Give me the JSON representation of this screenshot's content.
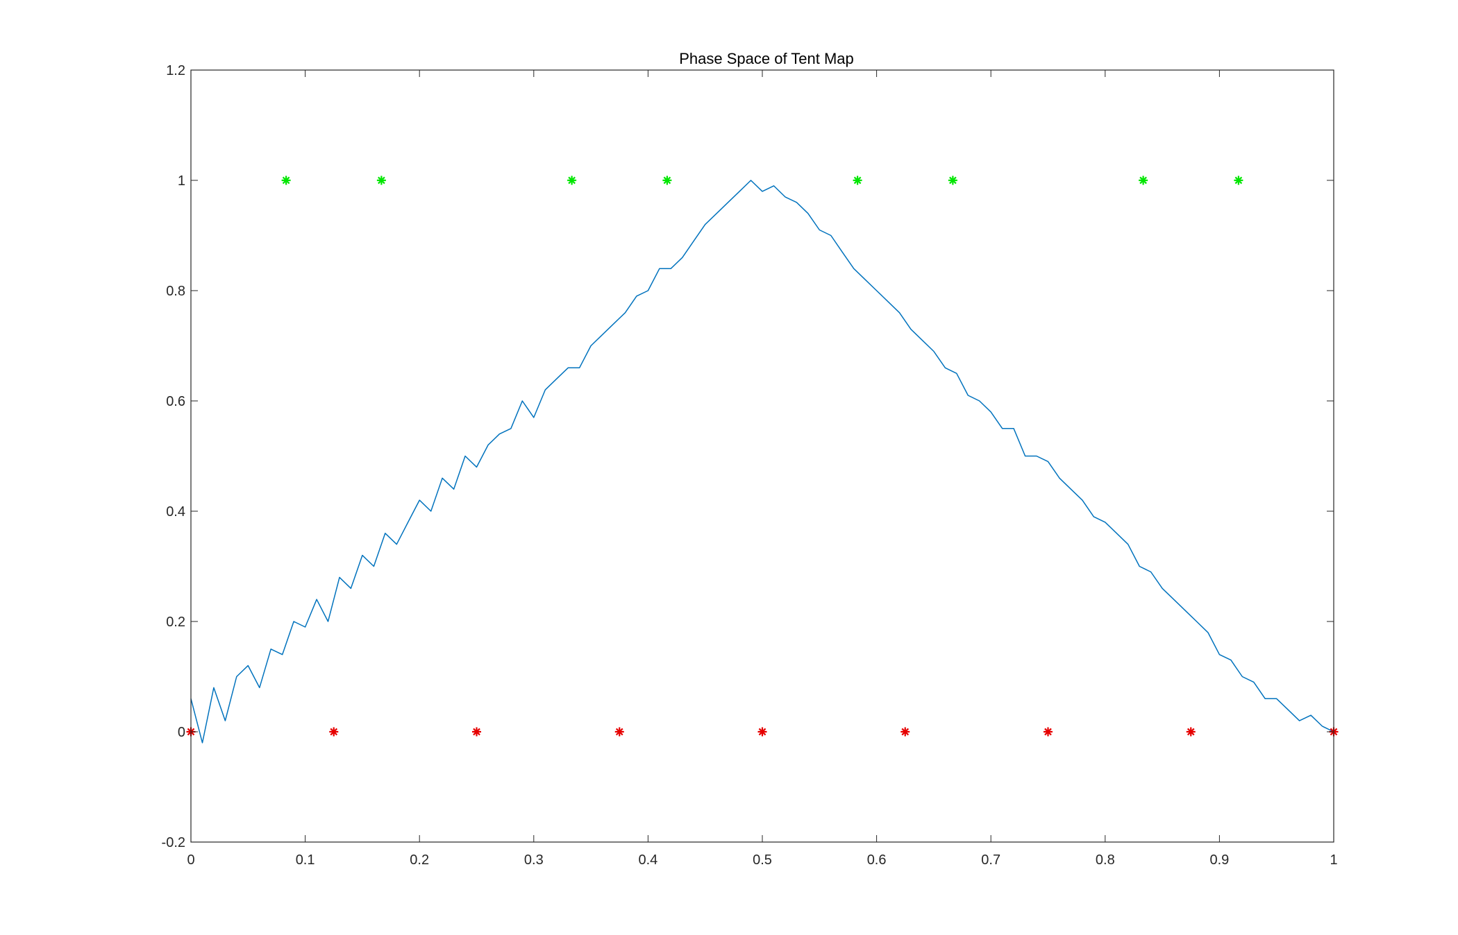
{
  "colors": {
    "line": "#0072BD",
    "green_marker": "#00E600",
    "red_marker": "#E60000",
    "axes": "#262626",
    "background": "#FFFFFF"
  },
  "chart_data": {
    "type": "line",
    "title": "Phase Space of Tent Map",
    "xlabel": "",
    "ylabel": "",
    "xlim": [
      0,
      1
    ],
    "ylim": [
      -0.2,
      1.2
    ],
    "xticks": [
      0,
      0.1,
      0.2,
      0.3,
      0.4,
      0.5,
      0.6,
      0.7,
      0.8,
      0.9,
      1
    ],
    "xtick_labels": [
      "0",
      "0.1",
      "0.2",
      "0.3",
      "0.4",
      "0.5",
      "0.6",
      "0.7",
      "0.8",
      "0.9",
      "1"
    ],
    "yticks": [
      -0.2,
      0,
      0.2,
      0.4,
      0.6,
      0.8,
      1,
      1.2
    ],
    "ytick_labels": [
      "-0.2",
      "0",
      "0.2",
      "0.4",
      "0.6",
      "0.8",
      "1",
      "1.2"
    ],
    "grid": false,
    "box": true,
    "series": [
      {
        "kind": "line",
        "color": "#0072BD",
        "x": [
          0,
          0.01,
          0.02,
          0.03,
          0.04,
          0.05,
          0.06,
          0.07,
          0.08,
          0.09,
          0.1,
          0.11,
          0.12,
          0.13,
          0.14,
          0.15,
          0.16,
          0.17,
          0.18,
          0.19,
          0.2,
          0.21,
          0.22,
          0.23,
          0.24,
          0.25,
          0.26,
          0.27,
          0.28,
          0.29,
          0.3,
          0.31,
          0.32,
          0.33,
          0.34,
          0.35,
          0.36,
          0.37,
          0.38,
          0.39,
          0.4,
          0.41,
          0.42,
          0.43,
          0.44,
          0.45,
          0.46,
          0.47,
          0.48,
          0.49,
          0.5,
          0.51,
          0.52,
          0.53,
          0.54,
          0.55,
          0.56,
          0.57,
          0.58,
          0.59,
          0.6,
          0.61,
          0.62,
          0.63,
          0.64,
          0.65,
          0.66,
          0.67,
          0.68,
          0.69,
          0.7,
          0.71,
          0.72,
          0.73,
          0.74,
          0.75,
          0.76,
          0.77,
          0.78,
          0.79,
          0.8,
          0.81,
          0.82,
          0.83,
          0.84,
          0.85,
          0.86,
          0.87,
          0.88,
          0.89,
          0.9,
          0.91,
          0.92,
          0.93,
          0.94,
          0.95,
          0.96,
          0.97,
          0.98,
          0.99,
          1
        ],
        "y": [
          0.06,
          -0.02,
          0.08,
          0.02,
          0.1,
          0.12,
          0.08,
          0.15,
          0.14,
          0.2,
          0.19,
          0.24,
          0.2,
          0.28,
          0.26,
          0.32,
          0.3,
          0.36,
          0.34,
          0.38,
          0.42,
          0.4,
          0.46,
          0.44,
          0.5,
          0.48,
          0.52,
          0.54,
          0.55,
          0.6,
          0.57,
          0.62,
          0.64,
          0.66,
          0.66,
          0.7,
          0.72,
          0.74,
          0.76,
          0.79,
          0.8,
          0.84,
          0.84,
          0.86,
          0.89,
          0.92,
          0.94,
          0.96,
          0.98,
          1.0,
          0.98,
          0.99,
          0.97,
          0.96,
          0.94,
          0.91,
          0.9,
          0.87,
          0.84,
          0.82,
          0.8,
          0.78,
          0.76,
          0.73,
          0.71,
          0.69,
          0.66,
          0.65,
          0.61,
          0.6,
          0.58,
          0.55,
          0.55,
          0.5,
          0.5,
          0.49,
          0.46,
          0.44,
          0.42,
          0.39,
          0.38,
          0.36,
          0.34,
          0.3,
          0.29,
          0.26,
          0.24,
          0.22,
          0.2,
          0.18,
          0.14,
          0.13,
          0.1,
          0.09,
          0.06,
          0.06,
          0.04,
          0.02,
          0.03,
          0.01,
          0.0
        ]
      },
      {
        "kind": "scatter",
        "marker": "*",
        "color": "#00E600",
        "x": [
          0.0833,
          0.1667,
          0.3333,
          0.4167,
          0.5833,
          0.6667,
          0.8333,
          0.9167
        ],
        "y": [
          1,
          1,
          1,
          1,
          1,
          1,
          1,
          1
        ]
      },
      {
        "kind": "scatter",
        "marker": "*",
        "color": "#E60000",
        "x": [
          0,
          0.125,
          0.25,
          0.375,
          0.5,
          0.625,
          0.75,
          0.875,
          1
        ],
        "y": [
          0,
          0,
          0,
          0,
          0,
          0,
          0,
          0,
          0
        ]
      }
    ]
  }
}
